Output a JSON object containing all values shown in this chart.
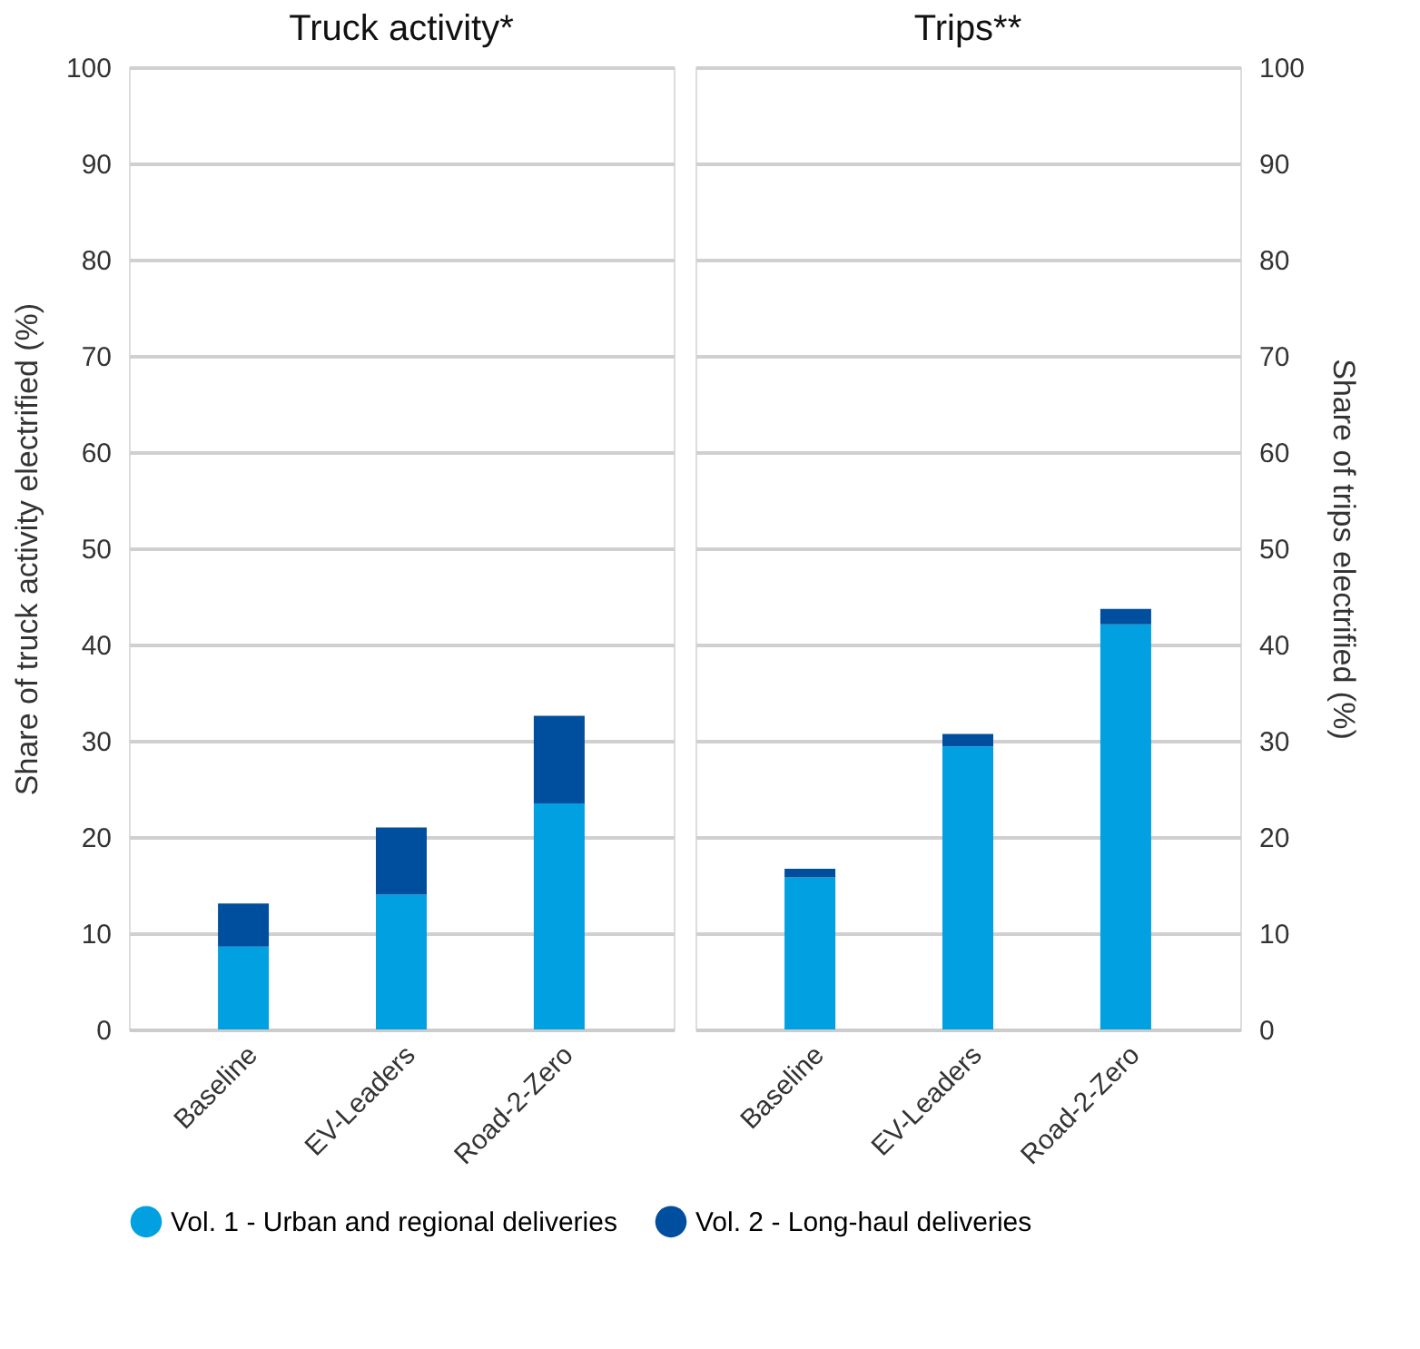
{
  "chart_data": [
    {
      "type": "bar",
      "title": "Truck activity*",
      "ylabel": "Share of truck activity electrified (%)",
      "categories": [
        "Baseline",
        "EV-Leaders",
        "Road-2-Zero"
      ],
      "stacked": true,
      "series": [
        {
          "name": "Vol. 1 - Urban and regional deliveries",
          "color": "#00a0e1",
          "values": [
            8.6,
            14.0,
            23.5
          ]
        },
        {
          "name": "Vol. 2 - Long-haul deliveries",
          "color": "#004f9f",
          "values": [
            4.5,
            7.0,
            9.1
          ]
        }
      ],
      "ylim": [
        0,
        100
      ],
      "yticks": [
        0,
        10,
        20,
        30,
        40,
        50,
        60,
        70,
        80,
        90,
        100
      ],
      "grid": "y",
      "legend": "bottom"
    },
    {
      "type": "bar",
      "title": "Trips**",
      "y2label": "Share of trips electrified (%)",
      "categories": [
        "Baseline",
        "EV-Leaders",
        "Road-2-Zero"
      ],
      "stacked": true,
      "series": [
        {
          "name": "Vol. 1 - Urban and regional deliveries",
          "color": "#00a0e1",
          "values": [
            15.8,
            29.4,
            42.1
          ],
          "axis": "y2"
        },
        {
          "name": "Vol. 2 - Long-haul deliveries",
          "color": "#004f9f",
          "values": [
            0.9,
            1.3,
            1.6
          ],
          "axis": "y2"
        }
      ],
      "y2lim": [
        0,
        100
      ],
      "y2ticks": [
        0,
        10,
        20,
        30,
        40,
        50,
        60,
        70,
        80,
        90,
        100
      ],
      "grid": "y",
      "legend": "bottom"
    }
  ]
}
